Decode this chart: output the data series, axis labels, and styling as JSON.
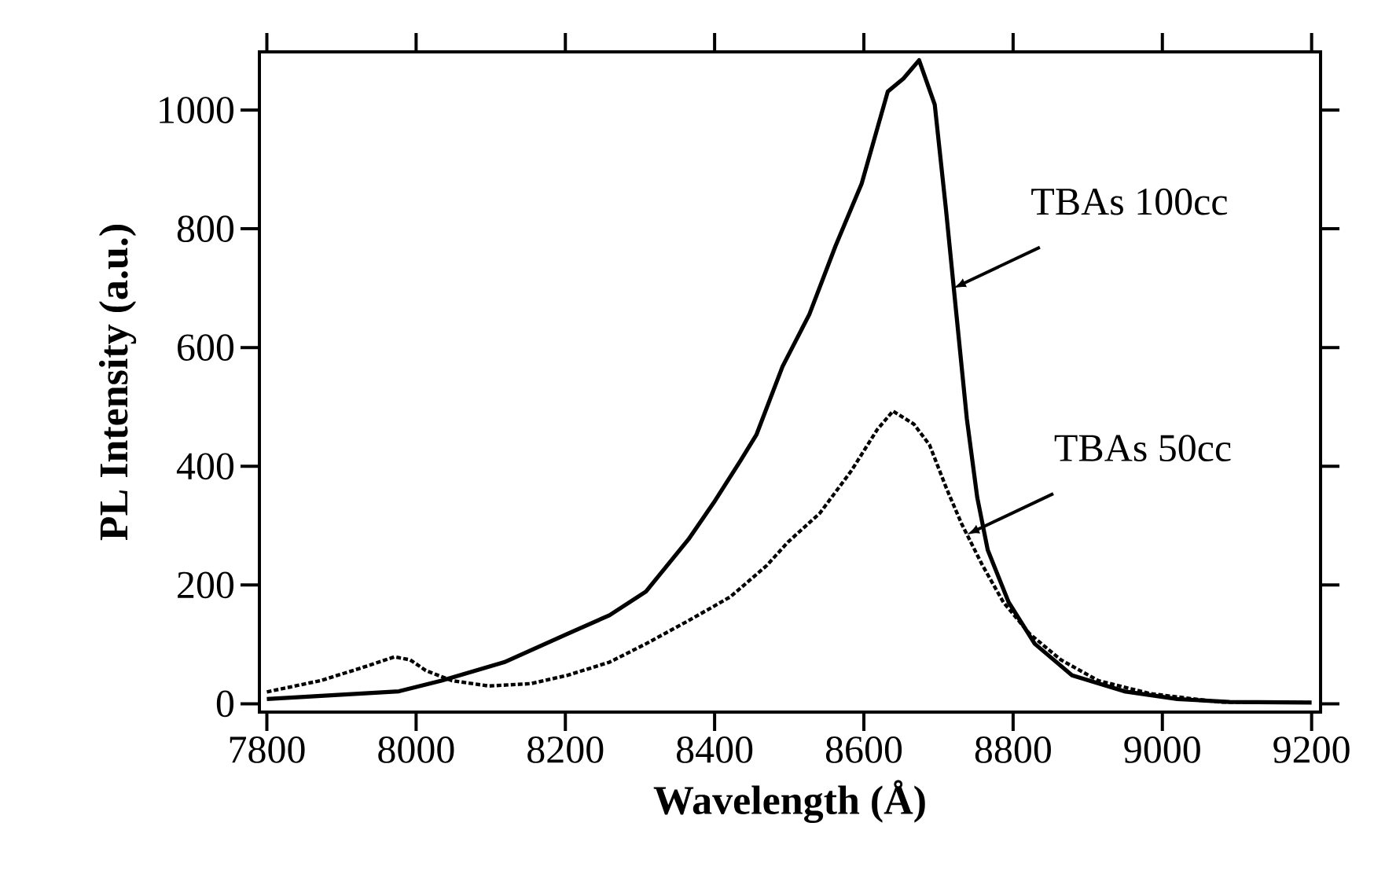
{
  "chart_data": {
    "type": "line",
    "xlabel": "Wavelength  (Å)",
    "ylabel": "PL Intensity  (a.u.)",
    "xlim": [
      7790,
      9212
    ],
    "ylim": [
      -14,
      1098
    ],
    "xticks": [
      7800,
      8000,
      8200,
      8400,
      8600,
      8800,
      9000,
      9200
    ],
    "yticks": [
      0,
      200,
      400,
      600,
      800,
      1000
    ],
    "grid": false,
    "marker": "none",
    "series": [
      {
        "color": "#000000",
        "line_style": "solid",
        "x": [
          7800,
          7977,
          8034,
          8118,
          8203,
          8259,
          8308,
          8365,
          8399,
          8435,
          8456,
          8491,
          8527,
          8562,
          8597,
          8632,
          8653,
          8674,
          8695,
          8710,
          8724,
          8738,
          8752,
          8766,
          8794,
          8829,
          8879,
          8949,
          9020,
          9090,
          9200
        ],
        "values": [
          8,
          21,
          39,
          70,
          118,
          149,
          189,
          277,
          339,
          410,
          453,
          568,
          656,
          771,
          876,
          1031,
          1053,
          1084,
          1009,
          833,
          656,
          480,
          347,
          259,
          171,
          101,
          48,
          21,
          8,
          3,
          2
        ]
      },
      {
        "color": "#000000",
        "line_style": "dotted",
        "x": [
          7800,
          7872,
          7928,
          7971,
          7992,
          8013,
          8048,
          8097,
          8154,
          8203,
          8259,
          8308,
          8365,
          8421,
          8470,
          8498,
          8541,
          8583,
          8618,
          8639,
          8667,
          8688,
          8710,
          8731,
          8759,
          8787,
          8822,
          8864,
          8914,
          8984,
          9076,
          9200
        ],
        "values": [
          20,
          39,
          61,
          79,
          74,
          56,
          39,
          30,
          34,
          48,
          70,
          101,
          140,
          180,
          233,
          272,
          321,
          392,
          462,
          493,
          471,
          436,
          365,
          303,
          233,
          171,
          118,
          74,
          39,
          17,
          3,
          2
        ]
      }
    ],
    "annotations": [
      {
        "text": "TBAs 100cc",
        "x": 8720,
        "y": 700
      },
      {
        "text": "TBAs 50cc",
        "x": 8738,
        "y": 285
      }
    ]
  }
}
